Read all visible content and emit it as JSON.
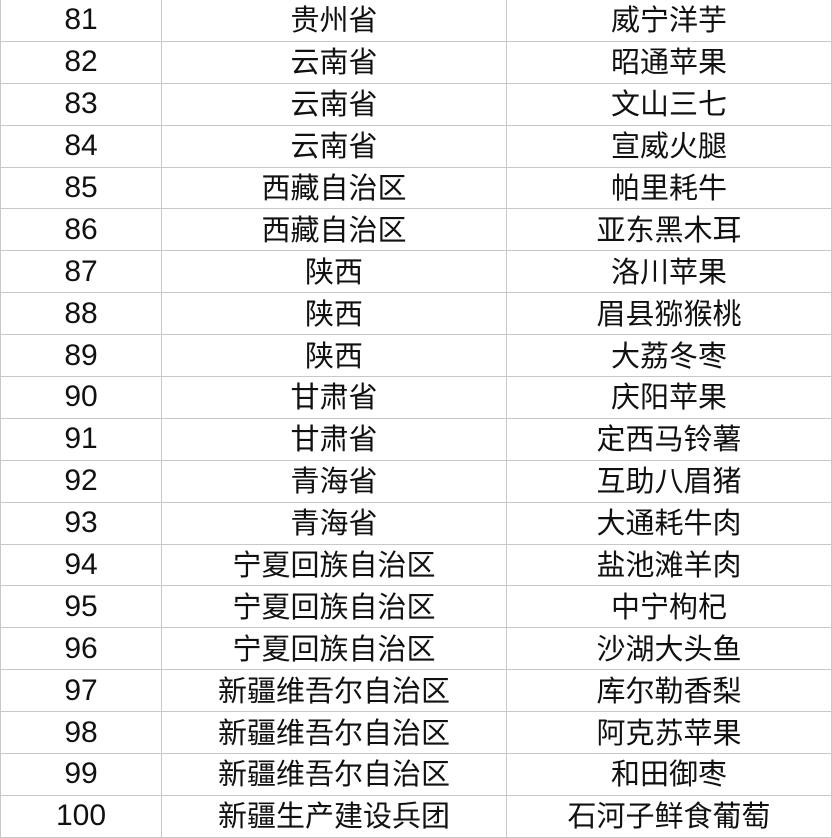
{
  "table": {
    "rows": [
      [
        "81",
        "贵州省",
        "威宁洋芋"
      ],
      [
        "82",
        "云南省",
        "昭通苹果"
      ],
      [
        "83",
        "云南省",
        "文山三七"
      ],
      [
        "84",
        "云南省",
        "宣威火腿"
      ],
      [
        "85",
        "西藏自治区",
        "帕里耗牛"
      ],
      [
        "86",
        "西藏自治区",
        "亚东黑木耳"
      ],
      [
        "87",
        "陕西",
        "洛川苹果"
      ],
      [
        "88",
        "陕西",
        "眉县猕猴桃"
      ],
      [
        "89",
        "陕西",
        "大荔冬枣"
      ],
      [
        "90",
        "甘肃省",
        "庆阳苹果"
      ],
      [
        "91",
        "甘肃省",
        "定西马铃薯"
      ],
      [
        "92",
        "青海省",
        "互助八眉猪"
      ],
      [
        "93",
        "青海省",
        "大通耗牛肉"
      ],
      [
        "94",
        "宁夏回族自治区",
        "盐池滩羊肉"
      ],
      [
        "95",
        "宁夏回族自治区",
        "中宁枸杞"
      ],
      [
        "96",
        "宁夏回族自治区",
        "沙湖大头鱼"
      ],
      [
        "97",
        "新疆维吾尔自治区",
        "库尔勒香梨"
      ],
      [
        "98",
        "新疆维吾尔自治区",
        "阿克苏苹果"
      ],
      [
        "99",
        "新疆维吾尔自治区",
        "和田御枣"
      ],
      [
        "100",
        "新疆生产建设兵团",
        "石河子鲜食葡萄"
      ]
    ]
  }
}
